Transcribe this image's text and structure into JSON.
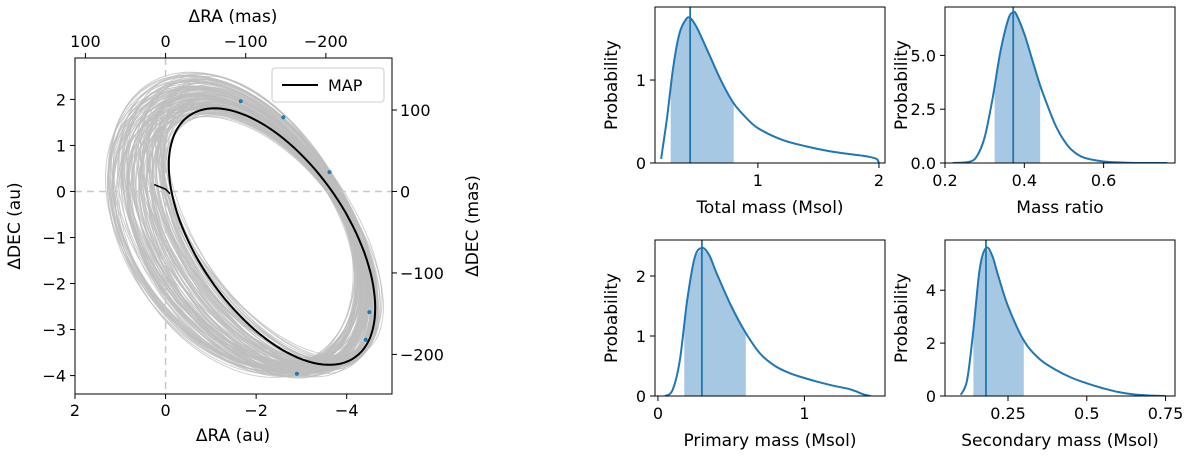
{
  "chart_data": [
    {
      "type": "line",
      "subtype": "orbit",
      "xlabel": "ΔRA (au)",
      "ylabel": "ΔDEC (au)",
      "x2label": "ΔRA (mas)",
      "y2label": "ΔDEC (mas)",
      "xlim": [
        2,
        -5
      ],
      "ylim": [
        -4.4,
        2.9
      ],
      "x_ticks": [
        2,
        0,
        -2,
        -4
      ],
      "y_ticks": [
        2,
        1,
        0,
        -1,
        -2,
        -3,
        -4
      ],
      "x2_ticks": [
        100,
        0,
        -100,
        -200
      ],
      "y2_ticks": [
        100,
        0,
        -100,
        -200
      ],
      "mas_per_au": 56.5,
      "grid": false,
      "reference_lines": {
        "x": 0,
        "y": 0,
        "style": "dashed"
      },
      "legend": {
        "position": "top-right",
        "entries": [
          "MAP"
        ]
      },
      "map_orbit": {
        "center": [
          -2.35,
          -0.98
        ],
        "semi_axes": [
          1.65,
          3.2
        ],
        "tilt_deg": -35
      },
      "posterior_orbit_color": "#bdbdbd",
      "map_color": "#000000",
      "observations": [
        {
          "x": -1.66,
          "y": 1.96
        },
        {
          "x": -2.6,
          "y": 1.61
        },
        {
          "x": -3.62,
          "y": 0.42
        },
        {
          "x": -4.5,
          "y": -2.62
        },
        {
          "x": -4.42,
          "y": -3.22
        },
        {
          "x": -2.9,
          "y": -3.96
        }
      ]
    },
    {
      "type": "area",
      "name": "total-mass",
      "xlabel": "Total mass (Msol)",
      "ylabel": "Probability",
      "xlim": [
        0.15,
        2.05
      ],
      "ylim": [
        0,
        1.88
      ],
      "x_ticks": [
        1,
        2
      ],
      "y_ticks": [
        0,
        1
      ],
      "map_value": 0.44,
      "credible_interval": [
        0.28,
        0.8
      ],
      "x": [
        0.2,
        0.25,
        0.3,
        0.35,
        0.4,
        0.44,
        0.5,
        0.6,
        0.7,
        0.8,
        0.9,
        1.0,
        1.2,
        1.4,
        1.6,
        1.8,
        1.9,
        1.98,
        2.0
      ],
      "y": [
        0.05,
        0.55,
        1.15,
        1.55,
        1.72,
        1.75,
        1.62,
        1.3,
        0.98,
        0.72,
        0.55,
        0.42,
        0.28,
        0.2,
        0.14,
        0.1,
        0.08,
        0.05,
        0.0
      ]
    },
    {
      "type": "area",
      "name": "mass-ratio",
      "xlabel": "Mass ratio",
      "ylabel": "Probability",
      "xlim": [
        0.2,
        0.78
      ],
      "ylim": [
        0,
        7.25
      ],
      "x_ticks": [
        0.2,
        0.4,
        0.6
      ],
      "y_ticks": [
        0.0,
        2.5,
        5.0
      ],
      "map_value": 0.372,
      "credible_interval": [
        0.325,
        0.44
      ],
      "x": [
        0.22,
        0.26,
        0.28,
        0.3,
        0.32,
        0.34,
        0.36,
        0.372,
        0.38,
        0.4,
        0.42,
        0.44,
        0.46,
        0.48,
        0.5,
        0.52,
        0.55,
        0.6,
        0.65,
        0.7,
        0.76
      ],
      "y": [
        0.0,
        0.05,
        0.3,
        1.2,
        3.0,
        5.2,
        6.7,
        7.0,
        6.9,
        6.0,
        4.8,
        3.6,
        2.6,
        1.7,
        1.05,
        0.6,
        0.25,
        0.07,
        0.02,
        0.0,
        0.0
      ]
    },
    {
      "type": "area",
      "name": "primary-mass",
      "xlabel": "Primary mass (Msol)",
      "ylabel": "Probability",
      "xlim": [
        -0.02,
        1.55
      ],
      "ylim": [
        0,
        2.6
      ],
      "x_ticks": [
        0,
        1
      ],
      "y_ticks": [
        0,
        1,
        2
      ],
      "map_value": 0.3,
      "credible_interval": [
        0.18,
        0.6
      ],
      "x": [
        0.05,
        0.1,
        0.15,
        0.2,
        0.25,
        0.3,
        0.35,
        0.4,
        0.5,
        0.6,
        0.7,
        0.8,
        0.9,
        1.0,
        1.1,
        1.2,
        1.3,
        1.35,
        1.4,
        1.45
      ],
      "y": [
        0.0,
        0.1,
        0.6,
        1.6,
        2.3,
        2.47,
        2.35,
        2.05,
        1.5,
        1.05,
        0.7,
        0.5,
        0.38,
        0.3,
        0.23,
        0.17,
        0.12,
        0.08,
        0.03,
        0.0
      ]
    },
    {
      "type": "area",
      "name": "secondary-mass",
      "xlabel": "Secondary mass (Msol)",
      "ylabel": "Probability",
      "xlim": [
        0.05,
        0.78
      ],
      "ylim": [
        0,
        5.9
      ],
      "x_ticks": [
        0.25,
        0.5,
        0.75
      ],
      "y_ticks": [
        0,
        2,
        4
      ],
      "map_value": 0.18,
      "credible_interval": [
        0.14,
        0.3
      ],
      "x": [
        0.1,
        0.12,
        0.14,
        0.16,
        0.18,
        0.2,
        0.22,
        0.25,
        0.3,
        0.35,
        0.4,
        0.45,
        0.5,
        0.55,
        0.6,
        0.65,
        0.7,
        0.75
      ],
      "y": [
        0.05,
        0.6,
        2.5,
        4.8,
        5.6,
        5.3,
        4.5,
        3.4,
        2.1,
        1.4,
        1.0,
        0.7,
        0.48,
        0.3,
        0.15,
        0.06,
        0.02,
        0.0
      ]
    }
  ]
}
